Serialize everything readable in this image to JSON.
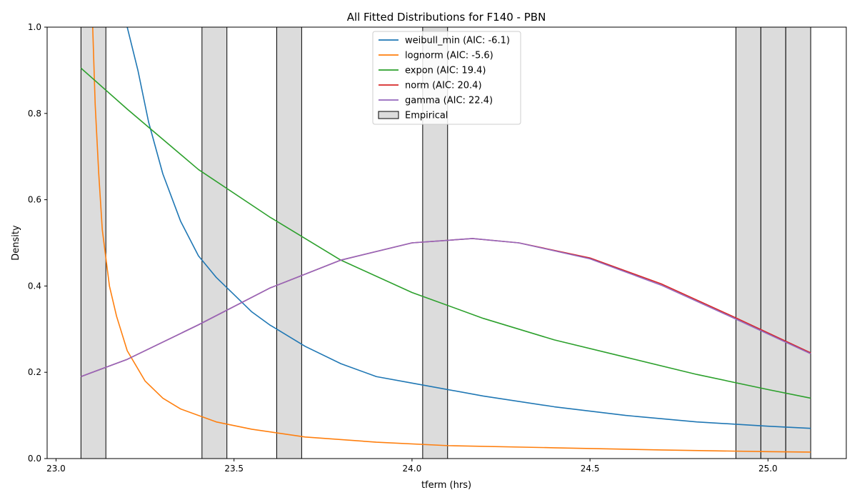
{
  "chart_data": {
    "type": "line",
    "title": "All Fitted Distributions for F140 - PBN",
    "xlabel": "tferm (hrs)",
    "ylabel": "Density",
    "xlim": [
      22.975,
      25.22
    ],
    "ylim": [
      0.0,
      1.0
    ],
    "x_ticks": [
      "23.0",
      "23.5",
      "24.0",
      "24.5",
      "25.0"
    ],
    "y_ticks": [
      "0.0",
      "0.2",
      "0.4",
      "0.6",
      "0.8",
      "1.0"
    ],
    "x_tick_values": [
      23.0,
      23.5,
      24.0,
      24.5,
      25.0
    ],
    "y_tick_values": [
      0.0,
      0.2,
      0.4,
      0.6,
      0.8,
      1.0
    ],
    "grid": false,
    "legend_position": "top-center",
    "histogram": {
      "name": "Empirical",
      "color": "#dcdcdc",
      "edge_color": "#000000",
      "bins": [
        {
          "x0": 23.07,
          "x1": 23.14,
          "density": 1.0
        },
        {
          "x0": 23.41,
          "x1": 23.48,
          "density": 1.0
        },
        {
          "x0": 23.62,
          "x1": 23.69,
          "density": 1.0
        },
        {
          "x0": 24.03,
          "x1": 24.1,
          "density": 1.0
        },
        {
          "x0": 24.91,
          "x1": 24.98,
          "density": 1.0
        },
        {
          "x0": 24.98,
          "x1": 25.05,
          "density": 1.0
        },
        {
          "x0": 25.05,
          "x1": 25.12,
          "density": 1.0
        }
      ]
    },
    "series": [
      {
        "name": "weibull_min (AIC: -6.1)",
        "color": "#1f77b4",
        "x": [
          23.2,
          23.23,
          23.26,
          23.3,
          23.35,
          23.4,
          23.45,
          23.5,
          23.55,
          23.6,
          23.7,
          23.8,
          23.9,
          24.0,
          24.2,
          24.4,
          24.6,
          24.8,
          25.0,
          25.12
        ],
        "y": [
          1.0,
          0.9,
          0.78,
          0.66,
          0.55,
          0.47,
          0.42,
          0.38,
          0.34,
          0.31,
          0.26,
          0.22,
          0.19,
          0.175,
          0.145,
          0.12,
          0.1,
          0.085,
          0.075,
          0.07
        ]
      },
      {
        "name": "lognorm (AIC: -5.6)",
        "color": "#ff7f0e",
        "x": [
          23.103,
          23.11,
          23.12,
          23.13,
          23.15,
          23.17,
          23.2,
          23.25,
          23.3,
          23.35,
          23.45,
          23.55,
          23.7,
          23.9,
          24.1,
          24.4,
          24.7,
          25.0,
          25.12
        ],
        "y": [
          1.0,
          0.82,
          0.66,
          0.53,
          0.4,
          0.33,
          0.25,
          0.18,
          0.14,
          0.115,
          0.085,
          0.068,
          0.05,
          0.038,
          0.03,
          0.025,
          0.02,
          0.016,
          0.015
        ]
      },
      {
        "name": "expon (AIC: 19.4)",
        "color": "#2ca02c",
        "x": [
          23.07,
          23.2,
          23.4,
          23.6,
          23.8,
          24.0,
          24.2,
          24.4,
          24.6,
          24.8,
          25.0,
          25.12
        ],
        "y": [
          0.905,
          0.81,
          0.67,
          0.56,
          0.46,
          0.385,
          0.325,
          0.275,
          0.235,
          0.195,
          0.16,
          0.14
        ]
      },
      {
        "name": "norm (AIC: 20.4)",
        "color": "#d62728",
        "x": [
          23.07,
          23.2,
          23.4,
          23.6,
          23.8,
          24.0,
          24.17,
          24.3,
          24.5,
          24.7,
          24.9,
          25.12
        ],
        "y": [
          0.19,
          0.23,
          0.31,
          0.395,
          0.46,
          0.5,
          0.51,
          0.5,
          0.465,
          0.405,
          0.33,
          0.245
        ]
      },
      {
        "name": "gamma (AIC: 22.4)",
        "color": "#9467bd",
        "x": [
          23.07,
          23.2,
          23.4,
          23.6,
          23.8,
          24.0,
          24.17,
          24.3,
          24.5,
          24.7,
          24.9,
          25.12
        ],
        "y": [
          0.19,
          0.23,
          0.31,
          0.395,
          0.46,
          0.5,
          0.51,
          0.5,
          0.463,
          0.402,
          0.327,
          0.243
        ]
      }
    ]
  }
}
